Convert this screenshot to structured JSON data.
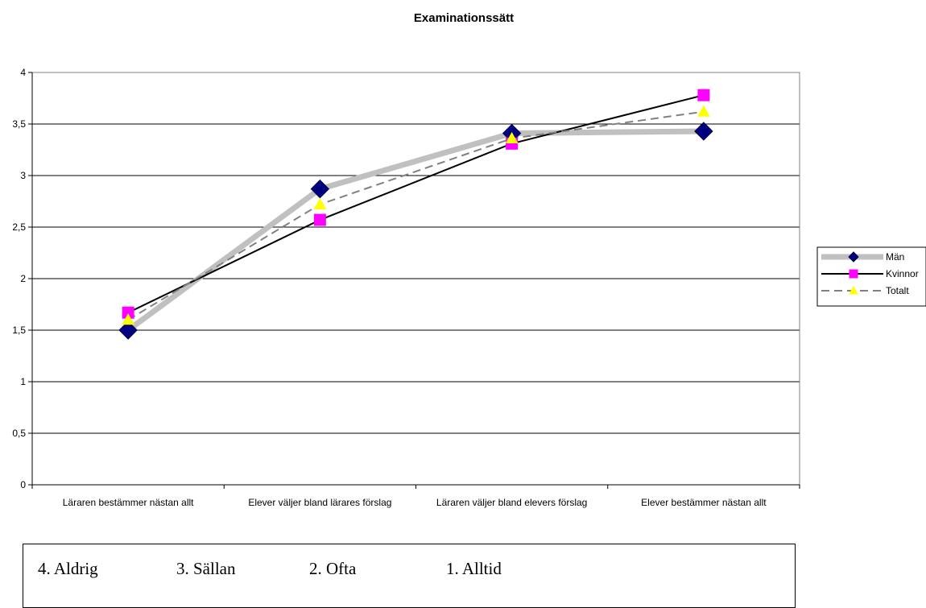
{
  "chart_data": {
    "type": "line",
    "title": "Examinationssätt",
    "categories": [
      "Läraren bestämmer nästan allt",
      "Elever väljer bland lärares förslag",
      "Läraren väljer bland elevers förslag",
      "Elever bestämmer nästan allt"
    ],
    "y_ticks": [
      "0",
      "0,5",
      "1",
      "1,5",
      "2",
      "2,5",
      "3",
      "3,5",
      "4"
    ],
    "ylim": [
      0,
      4
    ],
    "grid": true,
    "legend_position": "right",
    "series": [
      {
        "name": "Män",
        "values": [
          1.5,
          2.87,
          3.41,
          3.43
        ],
        "color": "#c0c0c0",
        "marker": "diamond",
        "marker_color": "#000080"
      },
      {
        "name": "Kvinnor",
        "values": [
          1.67,
          2.57,
          3.31,
          3.78
        ],
        "color": "#000000",
        "marker": "square",
        "marker_color": "#ff00ff"
      },
      {
        "name": "Totalt",
        "values": [
          1.6,
          2.72,
          3.36,
          3.62
        ],
        "color": "#808080",
        "marker": "triangle",
        "marker_color": "#ffff00"
      }
    ]
  },
  "scale_note": [
    "4. Aldrig",
    "3. Sällan",
    "2. Ofta",
    "1. Alltid"
  ]
}
